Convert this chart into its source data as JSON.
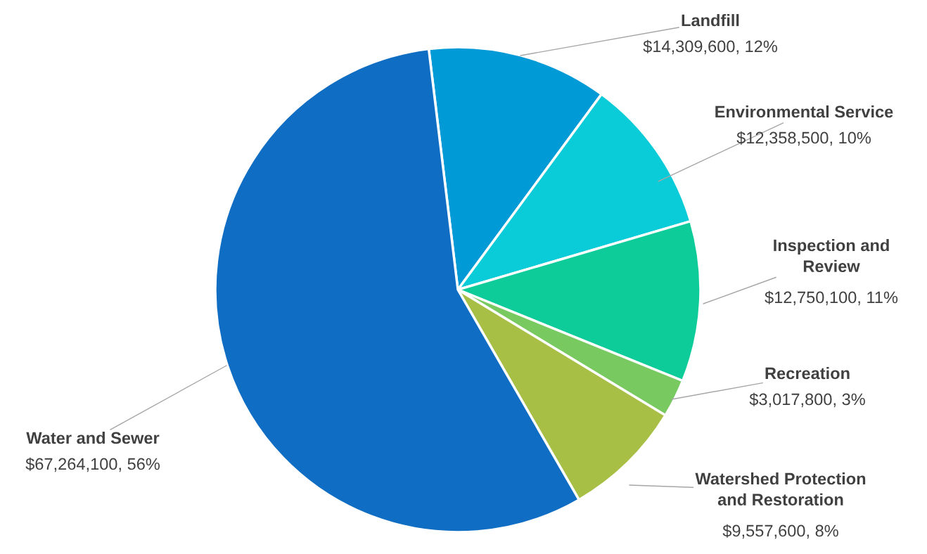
{
  "chart_data": {
    "type": "pie",
    "categories": [
      "Landfill",
      "Environmental Service",
      "Inspection and\nReview",
      "Recreation",
      "Watershed Protection\nand Restoration",
      "Water and Sewer"
    ],
    "values": [
      14309600,
      12358500,
      12750100,
      3017800,
      9557600,
      67264100
    ],
    "value_labels": [
      "$14,309,600, 12%",
      "$12,358,500, 10%",
      "$12,750,100, 11%",
      "$3,017,800, 3%",
      "$9,557,600, 8%",
      "$67,264,100, 56%"
    ],
    "colors": [
      "#009bd6",
      "#0acbd8",
      "#0ecb9a",
      "#77c960",
      "#a8bf45",
      "#0f6dc3"
    ],
    "legend": false
  }
}
